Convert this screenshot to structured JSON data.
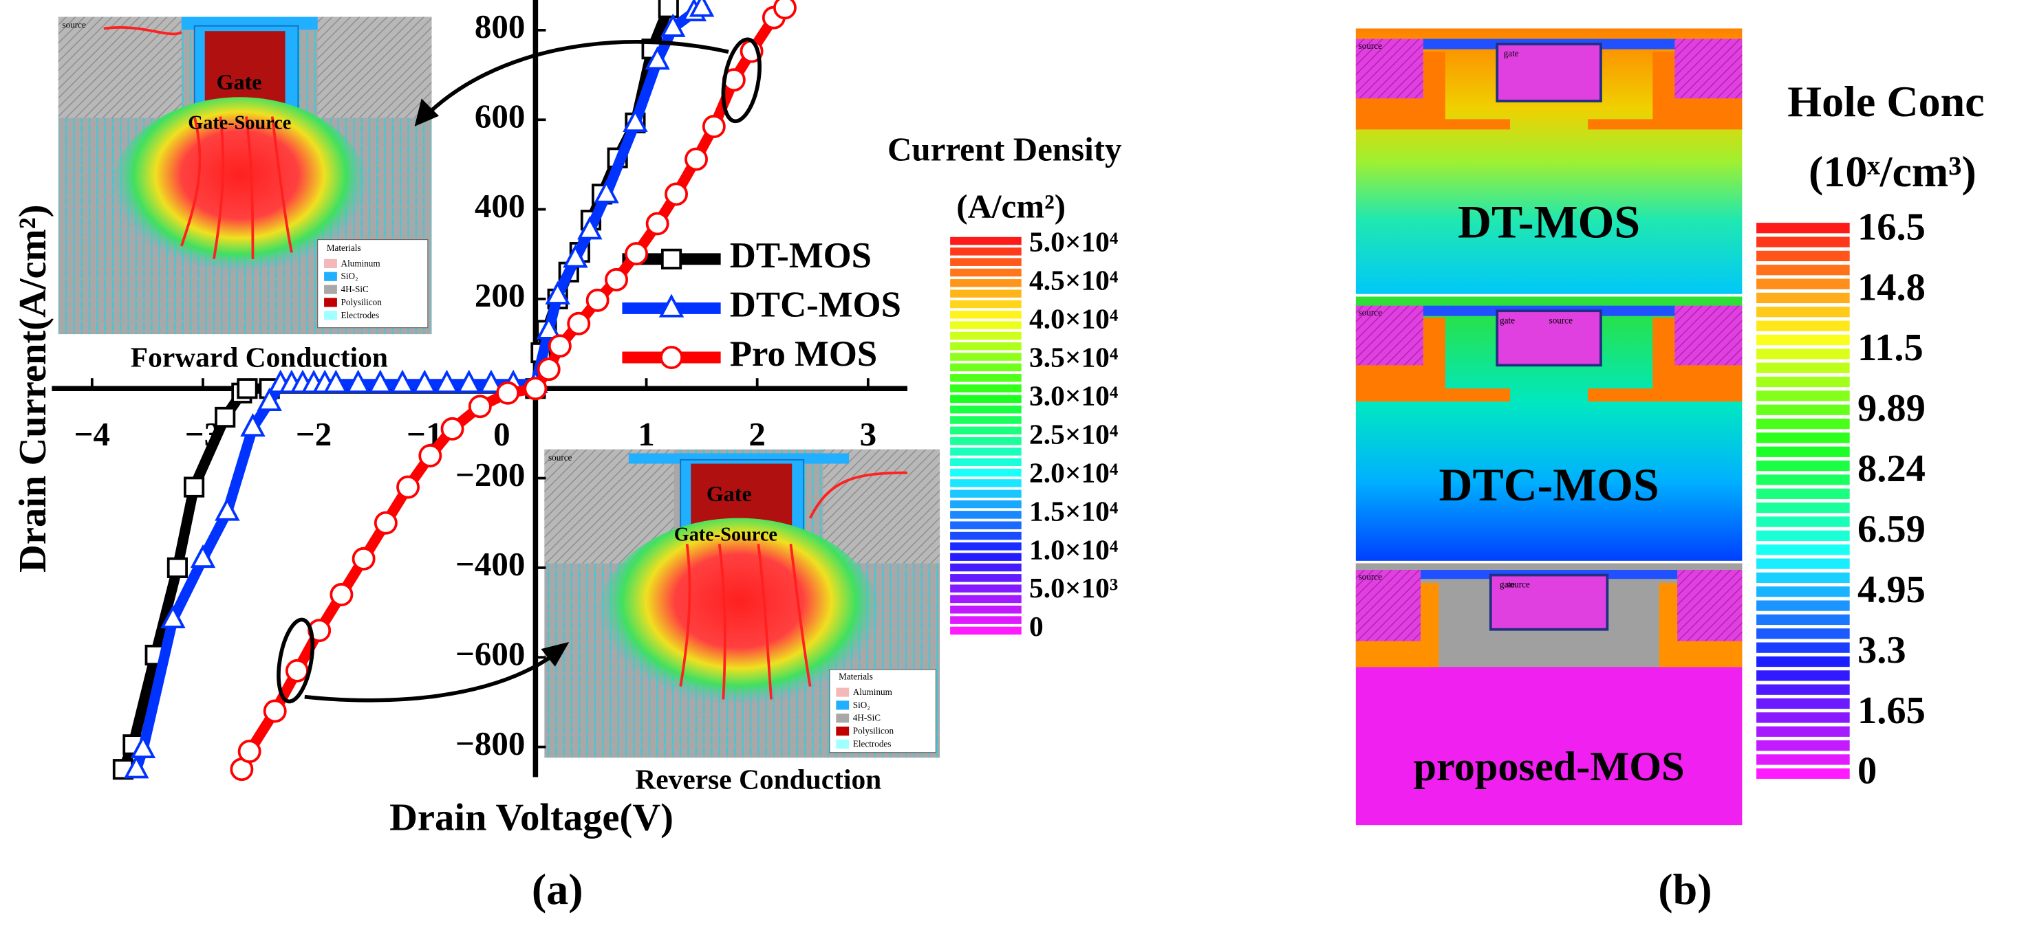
{
  "chart_data": {
    "type": "line",
    "x_label": "Drain Voltage(V)",
    "y_label": "Drain Current(A/cm²)",
    "panel_label": "(a)",
    "xlim": [
      -4,
      3.6
    ],
    "ylim": [
      -850,
      850
    ],
    "xticks": [
      {
        "value": -4,
        "label": "−4"
      },
      {
        "value": -3,
        "label": "−3"
      },
      {
        "value": -2,
        "label": "−2"
      },
      {
        "value": -1,
        "label": "−1"
      },
      0,
      1,
      2,
      3
    ],
    "yticks": [
      {
        "value": -800,
        "label": "−800"
      },
      {
        "value": -600,
        "label": "−600"
      },
      {
        "value": -400,
        "label": "−400"
      },
      {
        "value": -200,
        "label": "−200"
      },
      200,
      400,
      600,
      800
    ],
    "series": [
      {
        "name": "DT-MOS",
        "color": "#000000",
        "marker": "square",
        "x": [
          -3.72,
          -3.63,
          -3.43,
          -3.23,
          -3.08,
          -2.8,
          -2.65,
          -2.6,
          -2.4,
          0,
          0.05,
          0.1,
          0.2,
          0.3,
          0.4,
          0.5,
          0.6,
          0.74,
          0.9,
          1.05,
          1.2
        ],
        "values": [
          -850,
          -795,
          -595,
          -400,
          -220,
          -64,
          -10,
          0,
          0,
          0,
          80,
          130,
          200,
          260,
          304,
          376,
          434,
          515,
          593,
          758,
          850
        ]
      },
      {
        "name": "DTC-MOS",
        "color": "#0033ff",
        "marker": "triangle",
        "x": [
          -3.6,
          -3.54,
          -3.27,
          -3.0,
          -2.78,
          -2.55,
          -2.4,
          -2.3,
          -2.2,
          -2.1,
          -2.0,
          -1.9,
          -1.8,
          -1.6,
          -1.4,
          -1.2,
          -1.0,
          -0.8,
          -0.6,
          -0.4,
          -0.2,
          0,
          0.12,
          0.2,
          0.36,
          0.49,
          0.64,
          0.9,
          1.1,
          1.24,
          1.43,
          1.5
        ],
        "values": [
          -850,
          -805,
          -515,
          -380,
          -275,
          -87,
          -30,
          10,
          10,
          10,
          10,
          10,
          10,
          10,
          10,
          10,
          10,
          10,
          10,
          10,
          10,
          10,
          130,
          208,
          290,
          353,
          434,
          593,
          732,
          805,
          840,
          850
        ]
      },
      {
        "name": "Pro MOS",
        "color": "#ff0000",
        "marker": "circle",
        "x": [
          -2.65,
          -2.58,
          -2.35,
          -2.15,
          -1.95,
          -1.75,
          -1.55,
          -1.35,
          -1.15,
          -0.95,
          -0.75,
          -0.5,
          -0.25,
          0,
          0.12,
          0.22,
          0.39,
          0.56,
          0.73,
          0.91,
          1.1,
          1.27,
          1.45,
          1.61,
          1.79,
          1.95,
          2.15,
          2.25
        ],
        "values": [
          -850,
          -810,
          -720,
          -630,
          -540,
          -460,
          -380,
          -300,
          -220,
          -150,
          -90,
          -40,
          -10,
          0,
          43,
          95,
          145,
          197,
          243,
          301,
          368,
          434,
          512,
          585,
          689,
          753,
          828,
          850
        ]
      }
    ],
    "insets": {
      "forward": {
        "title": "Forward Conduction",
        "source": "source",
        "gate": "Gate",
        "gate_source": "Gate-Source",
        "materials_title": "Materials",
        "materials": [
          "Aluminum",
          "SiO₂",
          "4H-SiC",
          "Polysilicon",
          "Electrodes"
        ]
      },
      "reverse": {
        "title": "Reverse Conduction",
        "source": "source",
        "gate": "Gate",
        "gate_source": "Gate-Source",
        "materials_title": "Materials",
        "materials": [
          "Aluminum",
          "SiO₂",
          "4H-SiC",
          "Polysilicon",
          "Electrodes"
        ]
      }
    },
    "colorbar": {
      "title": "Current Density",
      "unit": "(A/cm²)",
      "labels": [
        "5.0×10⁴",
        "4.5×10⁴",
        "4.0×10⁴",
        "3.5×10⁴",
        "3.0×10⁴",
        "2.5×10⁴",
        "2.0×10⁴",
        "1.5×10⁴",
        "1.0×10⁴",
        "5.0×10³",
        "0"
      ]
    }
  },
  "panel_b": {
    "panel_label": "(b)",
    "title": "Hole Conc",
    "unit": "(10ˣ/cm³)",
    "labels": [
      "16.5",
      "14.8",
      "11.5",
      "9.89",
      "8.24",
      "6.59",
      "4.95",
      "3.3",
      "1.65",
      "0"
    ],
    "devices": [
      {
        "name": "DT-MOS",
        "source": "source",
        "gate": "gate"
      },
      {
        "name": "DTC-MOS",
        "source": "source",
        "gate": "gate",
        "source_2": "source"
      },
      {
        "name": "proposed-MOS",
        "source": "source",
        "gate": "gate",
        "source_2": "source"
      }
    ]
  }
}
